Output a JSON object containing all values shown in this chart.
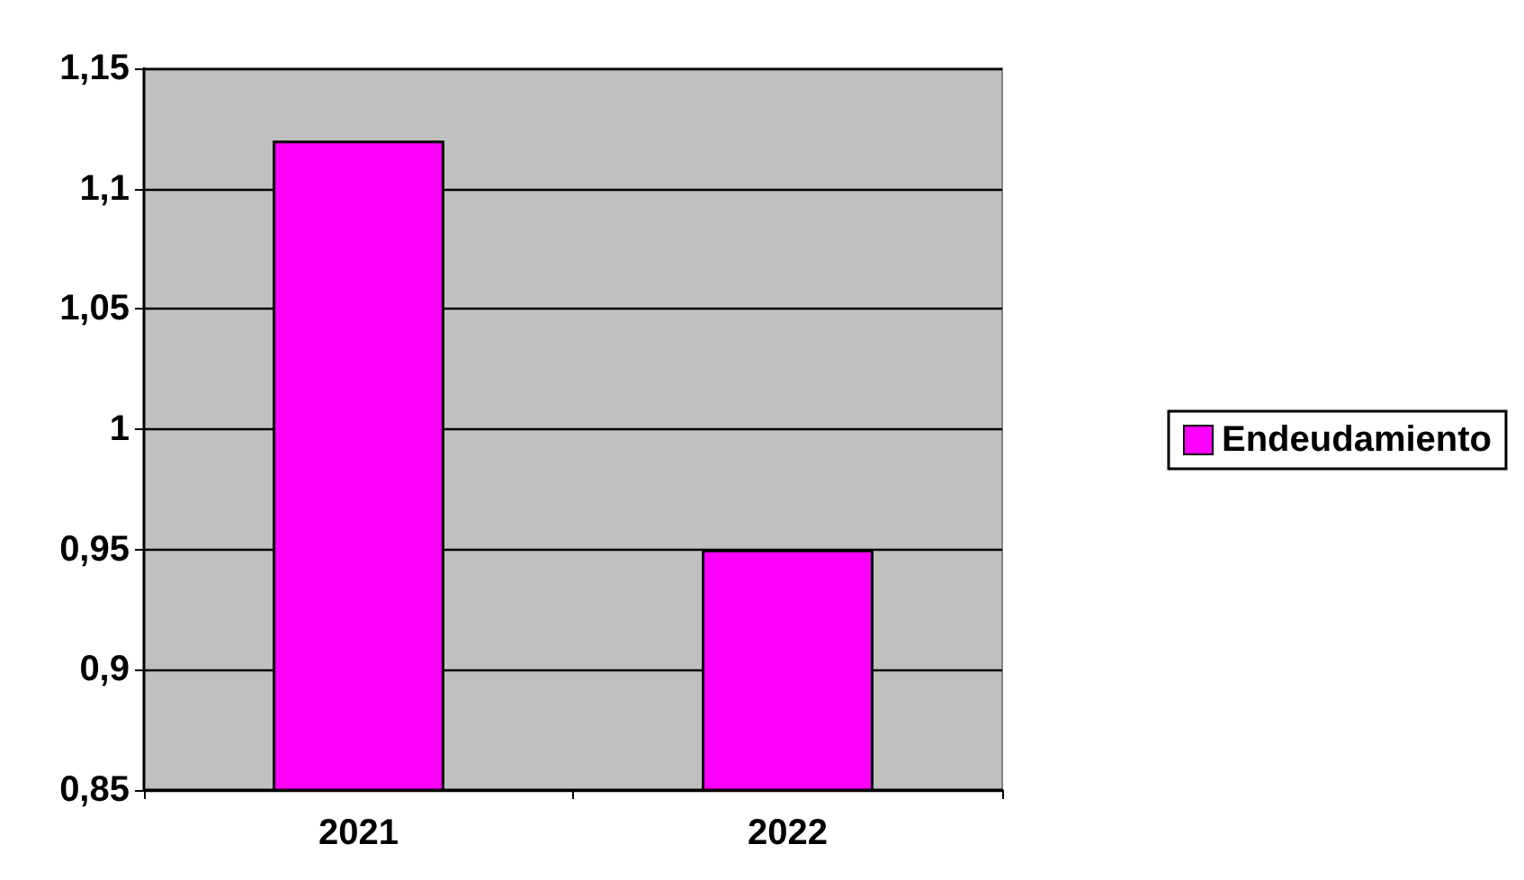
{
  "chart_data": {
    "type": "bar",
    "categories": [
      "2021",
      "2022"
    ],
    "series": [
      {
        "name": "Endeudamiento",
        "color": "#ff00ff",
        "values": [
          1.12,
          0.95
        ]
      }
    ],
    "ylim": [
      0.85,
      1.15
    ],
    "yticks": [
      {
        "value": 0.85,
        "label": "0,85"
      },
      {
        "value": 0.9,
        "label": "0,9"
      },
      {
        "value": 0.95,
        "label": "0,95"
      },
      {
        "value": 1,
        "label": "1"
      },
      {
        "value": 1.05,
        "label": "1,05"
      },
      {
        "value": 1.1,
        "label": "1,1"
      },
      {
        "value": 1.15,
        "label": "1,15"
      }
    ],
    "grid": "y",
    "legend": "right"
  }
}
